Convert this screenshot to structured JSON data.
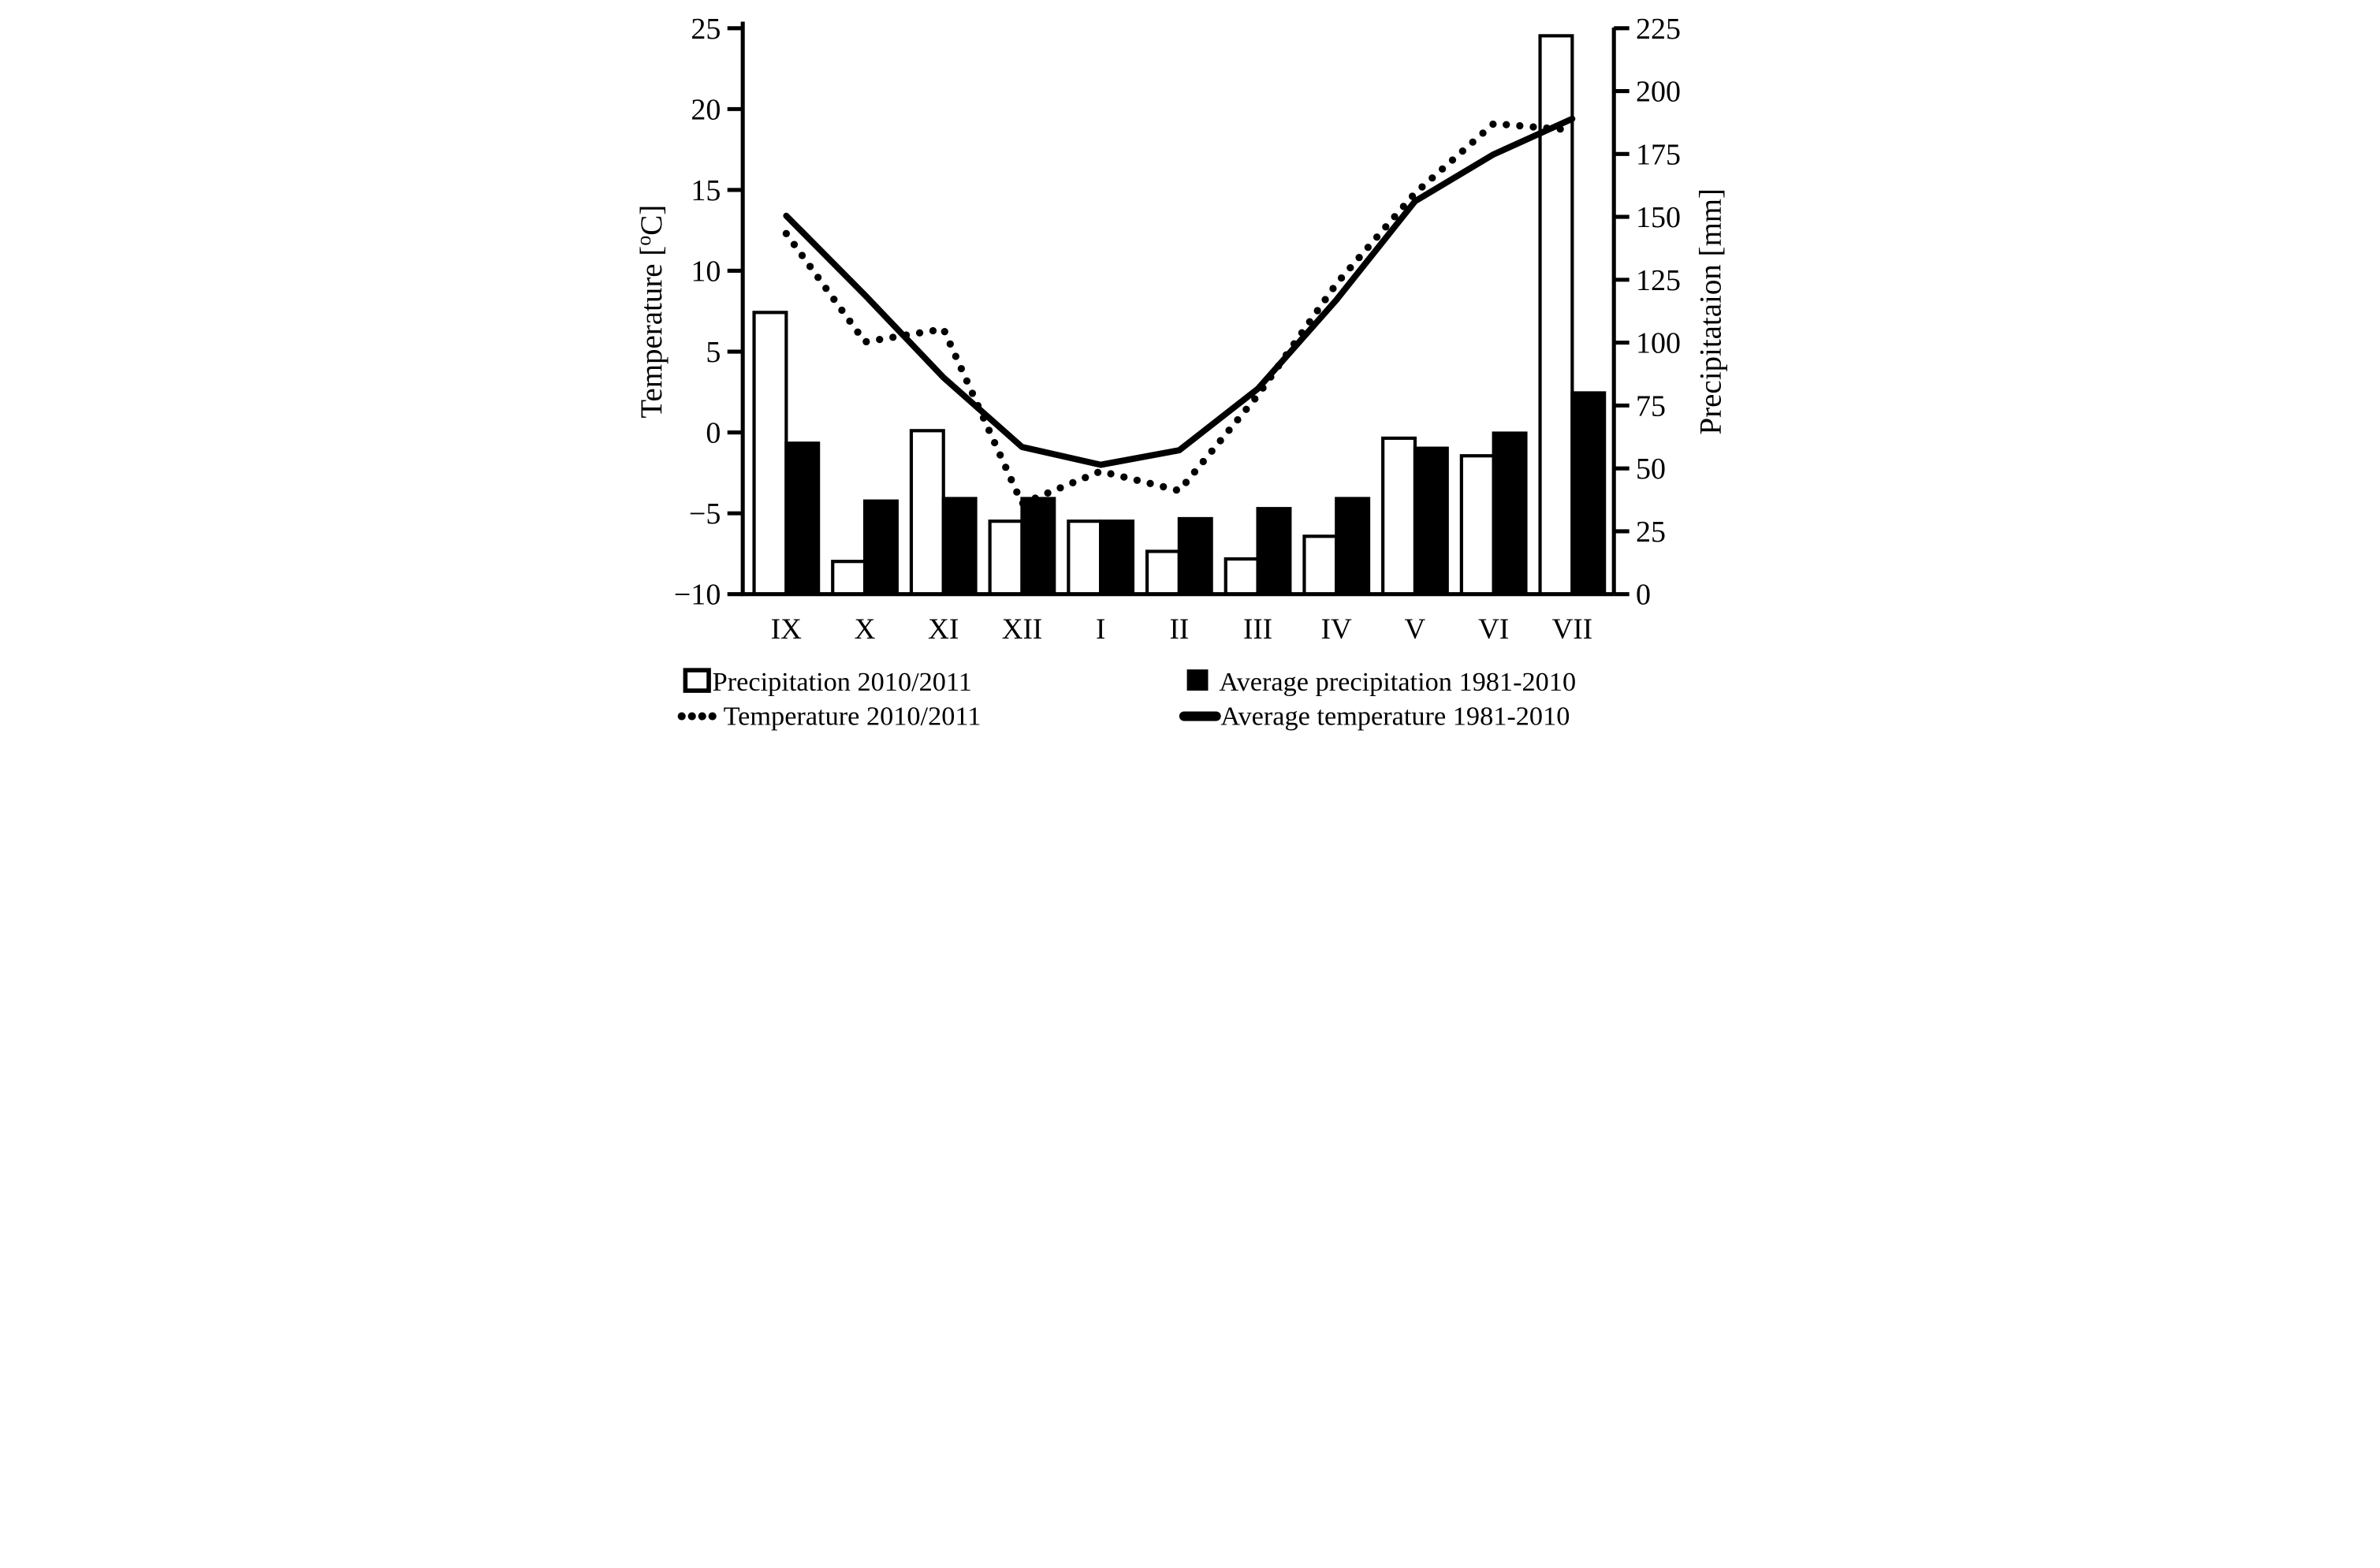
{
  "chart_data": {
    "type": "combo-bar-line",
    "months": [
      "IX",
      "X",
      "XI",
      "XII",
      "I",
      "II",
      "III",
      "IV",
      "V",
      "VI",
      "VII"
    ],
    "left_axis": {
      "label": "Temperature [°C]",
      "label_parts": {
        "pre": "Temperature [",
        "sup": "o",
        "post": "C]"
      },
      "ticks": [
        25,
        20,
        15,
        10,
        5,
        0,
        -5,
        -10
      ],
      "range": [
        -10,
        25
      ]
    },
    "right_axis": {
      "label": "Precipitataion [mm]",
      "ticks": [
        225,
        200,
        175,
        150,
        125,
        100,
        75,
        50,
        25,
        0
      ],
      "range": [
        0,
        225
      ]
    },
    "series": [
      {
        "name": "Precipitation 2010/2011",
        "type": "bar",
        "style": "open",
        "color": "#ffffff",
        "values": [
          112,
          13,
          65,
          29,
          29,
          17,
          14,
          23,
          62,
          55,
          222
        ]
      },
      {
        "name": "Average precipitation 1981-2010",
        "type": "bar",
        "style": "filled",
        "color": "#000000",
        "values": [
          60,
          37,
          38,
          38,
          29,
          30,
          34,
          38,
          58,
          64,
          80
        ]
      },
      {
        "name": "Temperature 2010/2011",
        "type": "line",
        "style": "dotted",
        "color": "#000000",
        "values": [
          12.3,
          5.6,
          6.4,
          -4.4,
          -2.4,
          -3.6,
          2.3,
          9.2,
          14.8,
          19.1,
          18.7
        ]
      },
      {
        "name": "Average  temperature 1981-2010",
        "type": "line",
        "style": "solid",
        "color": "#000000",
        "values": [
          13.4,
          8.5,
          3.4,
          -0.9,
          -2.0,
          -1.1,
          2.7,
          8.2,
          14.3,
          17.2,
          19.4
        ]
      }
    ],
    "legend_position": "bottom",
    "grid": false
  }
}
